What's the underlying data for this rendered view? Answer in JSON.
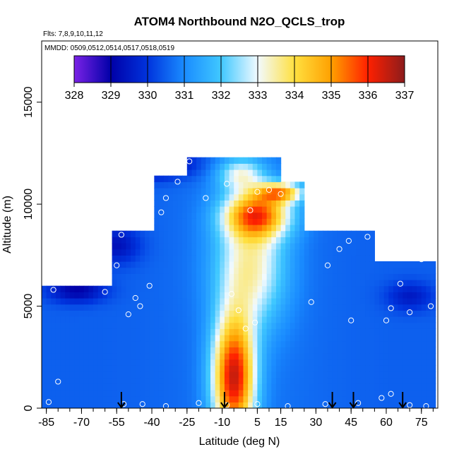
{
  "chart_data": {
    "type": "heatmap",
    "title": "ATOM4 Northbound N2O_QCLS_trop",
    "flights_label": "Flts: 7,8,9,10,11,12",
    "dates_label": "MMDD: 0509,0512,0514,0517,0518,0519",
    "xlabel": "Latitude (deg N)",
    "ylabel": "Altitude (m)",
    "xlim": [
      -87,
      82
    ],
    "ylim": [
      0,
      18000
    ],
    "x_ticks": [
      -85,
      -70,
      -55,
      -40,
      -25,
      -10,
      5,
      15,
      30,
      45,
      60,
      75
    ],
    "x_minor_step": 5,
    "y_ticks": [
      0,
      5000,
      10000,
      15000
    ],
    "colorbar": {
      "min": 328,
      "max": 337,
      "tick_values": [
        328,
        329,
        330,
        331,
        332,
        333,
        334,
        335,
        336,
        337
      ],
      "tick_labels": [
        "328",
        "329",
        "330",
        "331",
        "332",
        "333",
        "334",
        "335",
        "336",
        "337"
      ],
      "colors": [
        "#7b22e6",
        "#0000a8",
        "#0033dd",
        "#1a8cff",
        "#40c8ff",
        "#f2faff",
        "#ffe040",
        "#ffa000",
        "#ff2000",
        "#8c1c1c"
      ]
    },
    "field": {
      "background_value": 330.5,
      "peaks": [
        {
          "lat": -5,
          "alt": 1500,
          "value": 336.2,
          "lat_width": 9,
          "alt_width": 3000
        },
        {
          "lat": 5,
          "alt": 9500,
          "value": 334.6,
          "lat_width": 14,
          "alt_width": 1100
        },
        {
          "lat": 15,
          "alt": 10600,
          "value": 334.0,
          "lat_width": 10,
          "alt_width": 500
        },
        {
          "lat": 2,
          "alt": 7000,
          "value": 333.2,
          "lat_width": 15,
          "alt_width": 3000
        },
        {
          "lat": -2,
          "alt": 11500,
          "value": 332.6,
          "lat_width": 10,
          "alt_width": 800
        }
      ],
      "troughs": [
        {
          "lat": -72,
          "alt": 5800,
          "value": 329.0,
          "lat_width": 12,
          "alt_width": 600
        },
        {
          "lat": -40,
          "alt": 12000,
          "value": 328.6,
          "lat_width": 18,
          "alt_width": 700
        },
        {
          "lat": -55,
          "alt": 8000,
          "value": 329.3,
          "lat_width": 10,
          "alt_width": 900
        },
        {
          "lat": 70,
          "alt": 5500,
          "value": 329.5,
          "lat_width": 10,
          "alt_width": 700
        }
      ],
      "coverage": [
        {
          "lat": [
            -87,
            -55
          ],
          "alt": [
            0,
            6000
          ]
        },
        {
          "lat": [
            -57,
            -38
          ],
          "alt": [
            0,
            8800
          ]
        },
        {
          "lat": [
            -38,
            -25
          ],
          "alt": [
            0,
            11500
          ]
        },
        {
          "lat": [
            -25,
            15
          ],
          "alt": [
            0,
            12400
          ]
        },
        {
          "lat": [
            15,
            26
          ],
          "alt": [
            0,
            11100
          ]
        },
        {
          "lat": [
            26,
            55
          ],
          "alt": [
            0,
            8800
          ]
        },
        {
          "lat": [
            55,
            82
          ],
          "alt": [
            0,
            7300
          ]
        }
      ]
    },
    "flight_track_samples": [
      {
        "lat": -84,
        "alt": 300
      },
      {
        "lat": -80,
        "alt": 1300
      },
      {
        "lat": -82,
        "alt": 5800
      },
      {
        "lat": -60,
        "alt": 5700
      },
      {
        "lat": -55,
        "alt": 7000
      },
      {
        "lat": -53,
        "alt": 8500
      },
      {
        "lat": -50,
        "alt": 4600
      },
      {
        "lat": -47,
        "alt": 5400
      },
      {
        "lat": -45,
        "alt": 5000
      },
      {
        "lat": -41,
        "alt": 6000
      },
      {
        "lat": -36,
        "alt": 9600
      },
      {
        "lat": -34,
        "alt": 10300
      },
      {
        "lat": -29,
        "alt": 11100
      },
      {
        "lat": -24,
        "alt": 12100
      },
      {
        "lat": -17,
        "alt": 10300
      },
      {
        "lat": -8,
        "alt": 11000
      },
      {
        "lat": 2,
        "alt": 9700
      },
      {
        "lat": 5,
        "alt": 10600
      },
      {
        "lat": 10,
        "alt": 10700
      },
      {
        "lat": 15,
        "alt": 10500
      },
      {
        "lat": -6,
        "alt": 5600
      },
      {
        "lat": -3,
        "alt": 4800
      },
      {
        "lat": 0,
        "alt": 3900
      },
      {
        "lat": 4,
        "alt": 4200
      },
      {
        "lat": 28,
        "alt": 5200
      },
      {
        "lat": 35,
        "alt": 7000
      },
      {
        "lat": 40,
        "alt": 7800
      },
      {
        "lat": 44,
        "alt": 8200
      },
      {
        "lat": 45,
        "alt": 4300
      },
      {
        "lat": 52,
        "alt": 8400
      },
      {
        "lat": 57,
        "alt": 8100
      },
      {
        "lat": 60,
        "alt": 4300
      },
      {
        "lat": 62,
        "alt": 4900
      },
      {
        "lat": 66,
        "alt": 6100
      },
      {
        "lat": 70,
        "alt": 4700
      },
      {
        "lat": 75,
        "alt": 7300
      },
      {
        "lat": -52,
        "alt": 200
      },
      {
        "lat": -44,
        "alt": 200
      },
      {
        "lat": -34,
        "alt": 100
      },
      {
        "lat": -20,
        "alt": 250
      },
      {
        "lat": -8,
        "alt": 150
      },
      {
        "lat": 5,
        "alt": 200
      },
      {
        "lat": 18,
        "alt": 100
      },
      {
        "lat": 34,
        "alt": 200
      },
      {
        "lat": 48,
        "alt": 250
      },
      {
        "lat": 58,
        "alt": 500
      },
      {
        "lat": 62,
        "alt": 700
      },
      {
        "lat": 70,
        "alt": 150
      },
      {
        "lat": 77,
        "alt": 100
      },
      {
        "lat": 79,
        "alt": 5000
      }
    ],
    "arrows_lat": [
      -53,
      -9,
      37,
      46,
      67
    ]
  }
}
